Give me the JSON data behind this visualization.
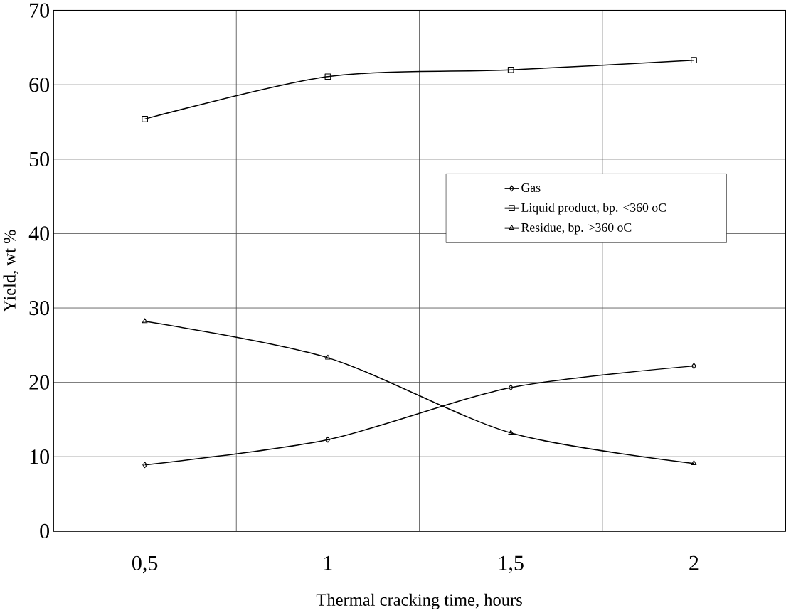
{
  "chart_data": {
    "type": "line",
    "xlabel": "Thermal cracking time, hours",
    "ylabel": "Yield, wt %",
    "categories": [
      "0,5",
      "1",
      "1,5",
      "2"
    ],
    "series": [
      {
        "name": "Gas",
        "color": "#000000",
        "marker": "diamond",
        "values": [
          8.9,
          12.3,
          19.3,
          22.2
        ]
      },
      {
        "name": "Liquid product, bp. <360 oC",
        "color": "#000000",
        "marker": "square",
        "values": [
          55.4,
          61.1,
          62.0,
          63.3
        ]
      },
      {
        "name": "Residue, bp. >360 oC",
        "color": "#000000",
        "marker": "triangle",
        "values": [
          28.2,
          23.3,
          13.2,
          9.1
        ]
      }
    ],
    "ylim": [
      0,
      70
    ],
    "yticks": [
      0,
      10,
      20,
      30,
      40,
      50,
      60,
      70
    ],
    "grid": true,
    "legend": "right",
    "line_style": "solid"
  }
}
